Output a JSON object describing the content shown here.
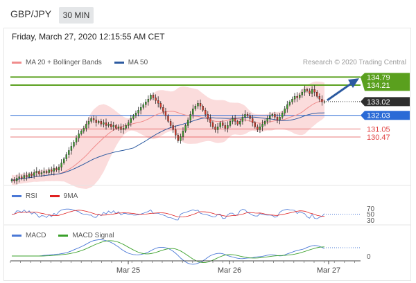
{
  "header": {
    "pair": "GBP/JPY",
    "timeframe": "30 MIN"
  },
  "datetime": "Friday, March 27, 2020 12:15:55 AM CET",
  "legend_main": [
    {
      "label": "MA 20 + Bollinger Bands",
      "color": "#f08c8c"
    },
    {
      "label": "MA 50",
      "color": "#2c5aa0"
    }
  ],
  "credit": "Research © 2020 Trading Central",
  "legend_rsi": [
    {
      "label": "RSI",
      "color": "#4a78d6"
    },
    {
      "label": "9MA",
      "color": "#e02020"
    }
  ],
  "legend_macd": [
    {
      "label": "MACD",
      "color": "#4a78d6"
    },
    {
      "label": "MACD Signal",
      "color": "#3aa02a"
    }
  ],
  "chart_data": {
    "type": "candlestick",
    "symbol": "GBP/JPY",
    "interval": "30 MIN",
    "x_ticks": [
      "Mar 25",
      "Mar 26",
      "Mar 27"
    ],
    "price_levels": [
      {
        "label": "134.79",
        "value": 134.79,
        "kind": "resistance",
        "color": "#5aa01e"
      },
      {
        "label": "134.21",
        "value": 134.21,
        "kind": "resistance",
        "color": "#5aa01e"
      },
      {
        "label": "133.02",
        "value": 133.02,
        "kind": "last",
        "color": "#333333"
      },
      {
        "label": "132.03",
        "value": 132.03,
        "kind": "pivot",
        "color": "#2a6ad6"
      },
      {
        "label": "131.05",
        "value": 131.05,
        "kind": "support",
        "color": "#e04040"
      },
      {
        "label": "130.47",
        "value": 130.47,
        "kind": "support",
        "color": "#e04040"
      }
    ],
    "rsi_levels": [
      "70",
      "50",
      "30"
    ],
    "macd_levels": [
      "0"
    ],
    "close_path": [
      127.4,
      127.3,
      127.5,
      127.6,
      127.5,
      127.7,
      127.6,
      127.8,
      127.7,
      127.9,
      128.0,
      127.8,
      127.9,
      128.0,
      127.9,
      128.1,
      128.0,
      128.2,
      128.1,
      128.3,
      128.6,
      128.9,
      129.2,
      129.5,
      129.8,
      130.1,
      130.4,
      130.7,
      130.9,
      131.1,
      131.4,
      131.6,
      131.8,
      131.7,
      131.5,
      131.6,
      131.4,
      131.5,
      131.3,
      131.4,
      131.2,
      131.3,
      131.1,
      131.2,
      131.0,
      131.1,
      131.3,
      131.5,
      131.8,
      132.0,
      132.2,
      132.4,
      132.6,
      132.8,
      133.0,
      133.2,
      133.5,
      133.3,
      133.1,
      132.9,
      132.6,
      132.3,
      132.0,
      131.6,
      131.3,
      131.0,
      130.6,
      130.2,
      130.5,
      130.9,
      131.3,
      131.7,
      132.1,
      132.5,
      132.7,
      132.9,
      132.7,
      132.4,
      132.1,
      131.8,
      131.5,
      131.2,
      131.0,
      131.2,
      131.5,
      131.3,
      131.1,
      131.3,
      131.6,
      131.8,
      131.6,
      131.4,
      131.6,
      131.9,
      132.1,
      132.0,
      131.8,
      131.5,
      131.2,
      131.0,
      131.2,
      131.4,
      131.6,
      131.8,
      132.0,
      132.1,
      131.9,
      131.7,
      131.9,
      132.2,
      132.5,
      132.8,
      133.0,
      133.2,
      133.4,
      133.3,
      133.5,
      133.7,
      133.9,
      133.8,
      133.6,
      133.9,
      133.7,
      133.4,
      133.2,
      133.0,
      133.02
    ]
  }
}
